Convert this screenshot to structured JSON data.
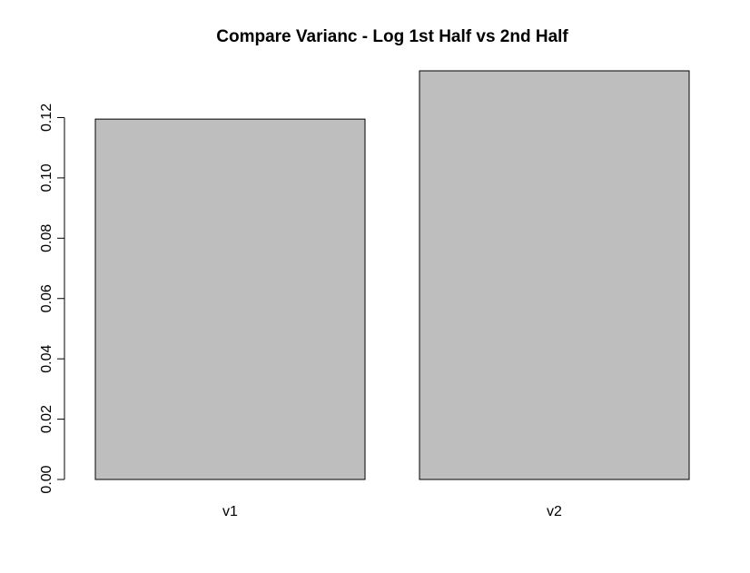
{
  "chart_data": {
    "type": "bar",
    "title": "Compare Varianc - Log 1st Half vs 2nd Half",
    "xlabel": "",
    "ylabel": "",
    "categories": [
      "v1",
      "v2"
    ],
    "values": [
      0.1195,
      0.1355
    ],
    "ylim": [
      0,
      0.1355
    ],
    "yticks": [
      "0.00",
      "0.02",
      "0.04",
      "0.06",
      "0.08",
      "0.10",
      "0.12"
    ],
    "grid": false,
    "bar_color": "#bebebe",
    "bar_border_color": "#000000"
  }
}
